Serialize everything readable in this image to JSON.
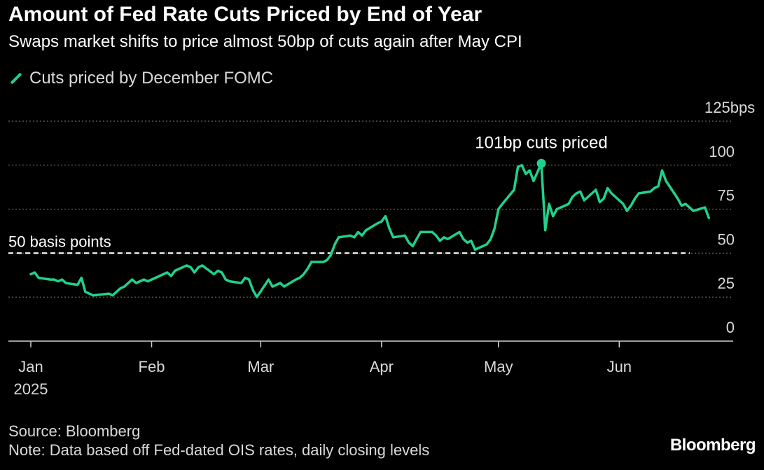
{
  "chart_data": {
    "type": "line",
    "title": "Amount of Fed Rate Cuts Priced by End of Year",
    "subtitle": "Swaps market shifts to price almost 50bp of cuts again after May CPI",
    "series": [
      {
        "name": "Cuts priced by December FOMC",
        "color": "#1fd28c",
        "points": [
          [
            "2025-01-01",
            38
          ],
          [
            "2025-01-02",
            39
          ],
          [
            "2025-01-03",
            36
          ],
          [
            "2025-01-06",
            35
          ],
          [
            "2025-01-07",
            35
          ],
          [
            "2025-01-08",
            34
          ],
          [
            "2025-01-09",
            35
          ],
          [
            "2025-01-10",
            33
          ],
          [
            "2025-01-13",
            32
          ],
          [
            "2025-01-14",
            36
          ],
          [
            "2025-01-15",
            28
          ],
          [
            "2025-01-16",
            27
          ],
          [
            "2025-01-17",
            26
          ],
          [
            "2025-01-21",
            27
          ],
          [
            "2025-01-22",
            26
          ],
          [
            "2025-01-24",
            30
          ],
          [
            "2025-01-25",
            31
          ],
          [
            "2025-01-27",
            35
          ],
          [
            "2025-01-28",
            33
          ],
          [
            "2025-01-29",
            34
          ],
          [
            "2025-01-30",
            35
          ],
          [
            "2025-01-31",
            34
          ],
          [
            "2025-02-03",
            37
          ],
          [
            "2025-02-04",
            38
          ],
          [
            "2025-02-05",
            39
          ],
          [
            "2025-02-06",
            37
          ],
          [
            "2025-02-07",
            40
          ],
          [
            "2025-02-10",
            43
          ],
          [
            "2025-02-11",
            42
          ],
          [
            "2025-02-12",
            39
          ],
          [
            "2025-02-13",
            42
          ],
          [
            "2025-02-14",
            43
          ],
          [
            "2025-02-17",
            38
          ],
          [
            "2025-02-18",
            40
          ],
          [
            "2025-02-19",
            39
          ],
          [
            "2025-02-20",
            35
          ],
          [
            "2025-02-21",
            34
          ],
          [
            "2025-02-24",
            33
          ],
          [
            "2025-02-25",
            36
          ],
          [
            "2025-02-26",
            35
          ],
          [
            "2025-02-27",
            29
          ],
          [
            "2025-02-28",
            25
          ],
          [
            "2025-03-03",
            35
          ],
          [
            "2025-03-04",
            31
          ],
          [
            "2025-03-05",
            32
          ],
          [
            "2025-03-06",
            33
          ],
          [
            "2025-03-07",
            31
          ],
          [
            "2025-03-10",
            35
          ],
          [
            "2025-03-11",
            36
          ],
          [
            "2025-03-12",
            38
          ],
          [
            "2025-03-13",
            41
          ],
          [
            "2025-03-14",
            45
          ],
          [
            "2025-03-17",
            45
          ],
          [
            "2025-03-18",
            46
          ],
          [
            "2025-03-19",
            49
          ],
          [
            "2025-03-20",
            55
          ],
          [
            "2025-03-21",
            59
          ],
          [
            "2025-03-24",
            60
          ],
          [
            "2025-03-25",
            59
          ],
          [
            "2025-03-26",
            62
          ],
          [
            "2025-03-27",
            60
          ],
          [
            "2025-03-28",
            63
          ],
          [
            "2025-03-31",
            67
          ],
          [
            "2025-04-01",
            68
          ],
          [
            "2025-04-02",
            71
          ],
          [
            "2025-04-03",
            64
          ],
          [
            "2025-04-04",
            59
          ],
          [
            "2025-04-07",
            60
          ],
          [
            "2025-04-08",
            56
          ],
          [
            "2025-04-09",
            54
          ],
          [
            "2025-04-10",
            58
          ],
          [
            "2025-04-11",
            62
          ],
          [
            "2025-04-14",
            62
          ],
          [
            "2025-04-15",
            60
          ],
          [
            "2025-04-16",
            57
          ],
          [
            "2025-04-17",
            59
          ],
          [
            "2025-04-18",
            58
          ],
          [
            "2025-04-21",
            62
          ],
          [
            "2025-04-22",
            58
          ],
          [
            "2025-04-23",
            56
          ],
          [
            "2025-04-24",
            57
          ],
          [
            "2025-04-25",
            52
          ],
          [
            "2025-04-28",
            55
          ],
          [
            "2025-04-29",
            58
          ],
          [
            "2025-04-30",
            64
          ],
          [
            "2025-05-01",
            75
          ],
          [
            "2025-05-02",
            78
          ],
          [
            "2025-05-05",
            86
          ],
          [
            "2025-05-06",
            99
          ],
          [
            "2025-05-07",
            100
          ],
          [
            "2025-05-08",
            95
          ],
          [
            "2025-05-09",
            97
          ],
          [
            "2025-05-10",
            91
          ],
          [
            "2025-05-12",
            101
          ],
          [
            "2025-05-13",
            63
          ],
          [
            "2025-05-14",
            78
          ],
          [
            "2025-05-15",
            71
          ],
          [
            "2025-05-16",
            75
          ],
          [
            "2025-05-19",
            78
          ],
          [
            "2025-05-20",
            82
          ],
          [
            "2025-05-21",
            84
          ],
          [
            "2025-05-22",
            85
          ],
          [
            "2025-05-23",
            80
          ],
          [
            "2025-05-26",
            86
          ],
          [
            "2025-05-27",
            79
          ],
          [
            "2025-05-28",
            81
          ],
          [
            "2025-05-29",
            87
          ],
          [
            "2025-05-30",
            84
          ],
          [
            "2025-06-02",
            78
          ],
          [
            "2025-06-03",
            74
          ],
          [
            "2025-06-04",
            77
          ],
          [
            "2025-06-05",
            81
          ],
          [
            "2025-06-06",
            84
          ],
          [
            "2025-06-09",
            85
          ],
          [
            "2025-06-10",
            87
          ],
          [
            "2025-06-11",
            88
          ],
          [
            "2025-06-12",
            97
          ],
          [
            "2025-06-13",
            91
          ],
          [
            "2025-06-16",
            81
          ],
          [
            "2025-06-17",
            77
          ],
          [
            "2025-06-18",
            78
          ],
          [
            "2025-06-19",
            76
          ],
          [
            "2025-06-20",
            74
          ],
          [
            "2025-06-23",
            76
          ],
          [
            "2025-06-24",
            70
          ]
        ]
      }
    ],
    "annotations": [
      {
        "text": "101bp cuts priced",
        "x": "2025-05-12",
        "y": 101
      },
      {
        "text": "50 basis points",
        "y": 50
      }
    ],
    "x_ticks": [
      "Jan",
      "Feb",
      "Mar",
      "Apr",
      "May",
      "Jun"
    ],
    "x_year_label": "2025",
    "y_ticks": [
      "0",
      "25",
      "50",
      "75",
      "100",
      "125bps"
    ],
    "ylim": [
      0,
      125
    ],
    "grid": "horizontal dotted",
    "legend_position": "top-left",
    "reference_line": {
      "y": 50,
      "style": "dashed"
    }
  },
  "footer": {
    "source": "Source: Bloomberg",
    "note": "Note: Data based off Fed-dated OIS rates, daily closing levels",
    "brand": "Bloomberg"
  }
}
